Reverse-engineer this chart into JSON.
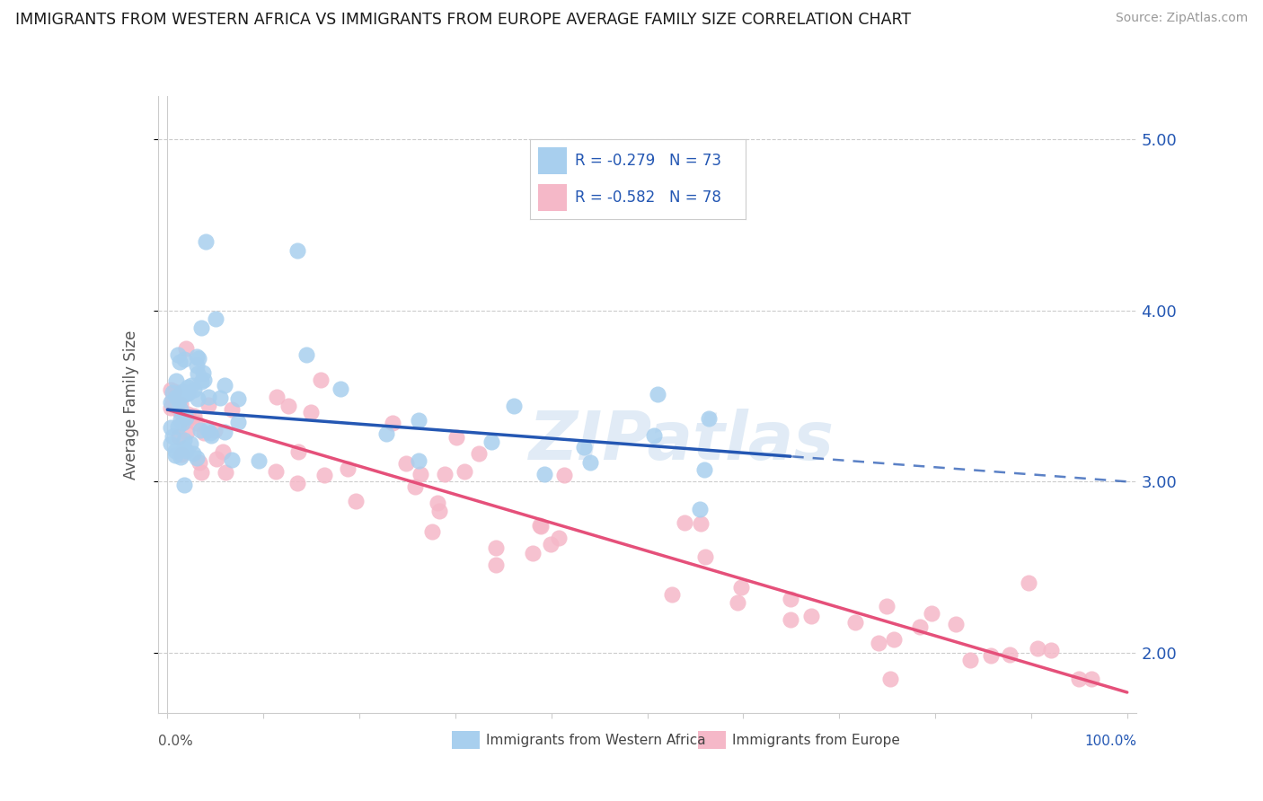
{
  "title": "IMMIGRANTS FROM WESTERN AFRICA VS IMMIGRANTS FROM EUROPE AVERAGE FAMILY SIZE CORRELATION CHART",
  "source": "Source: ZipAtlas.com",
  "ylabel": "Average Family Size",
  "series1_label": "Immigrants from Western Africa",
  "series2_label": "Immigrants from Europe",
  "series1_R": -0.279,
  "series1_N": 73,
  "series2_R": -0.582,
  "series2_N": 78,
  "series1_color": "#A8CFEE",
  "series2_color": "#F5B8C8",
  "trend1_color": "#2457B3",
  "trend2_color": "#E5507A",
  "ylim_min": 1.65,
  "ylim_max": 5.25,
  "xlim_min": -1,
  "xlim_max": 101,
  "yticks": [
    2.0,
    3.0,
    4.0,
    5.0
  ],
  "xticks": [
    0,
    10,
    20,
    30,
    40,
    50,
    60,
    70,
    80,
    90,
    100
  ],
  "watermark": "ZIPatlas",
  "trend1_intercept": 3.42,
  "trend1_slope": -0.0042,
  "trend1_solid_end": 65,
  "trend2_intercept": 3.42,
  "trend2_slope": -0.0165
}
